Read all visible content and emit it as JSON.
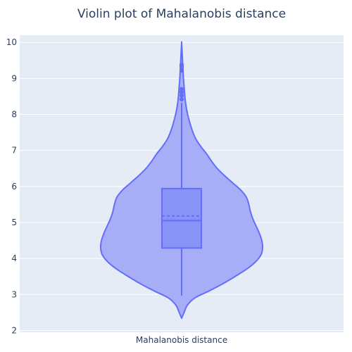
{
  "chart_data": {
    "type": "violin",
    "title": "Violin plot of Mahalanobis distance",
    "category": "Mahalanobis distance",
    "ylim": [
      1.95,
      10.2
    ],
    "yticks": [
      2,
      3,
      4,
      5,
      6,
      7,
      8,
      9,
      10
    ],
    "grid": true,
    "legend": "none",
    "colors": {
      "plot_bg": "#e5ecf6",
      "grid": "#ffffff",
      "violin_fill": "#a3aaf7",
      "violin_line": "#636efa",
      "box_fill": "#8a93f7",
      "text": "#2a3f5f"
    },
    "stats": {
      "min": 2.34,
      "lower_fence": 2.97,
      "q1": 4.29,
      "median": 5.05,
      "mean": 5.18,
      "q3": 5.94,
      "upper_fence": 8.32,
      "max": 9.98
    },
    "outliers": [
      8.42,
      8.53,
      8.62,
      8.7,
      9.22,
      9.33,
      9.38
    ],
    "density_profile": [
      {
        "y": 2.34,
        "w": 0.0
      },
      {
        "y": 2.5,
        "w": 0.03
      },
      {
        "y": 2.7,
        "w": 0.07
      },
      {
        "y": 2.9,
        "w": 0.16
      },
      {
        "y": 3.1,
        "w": 0.34
      },
      {
        "y": 3.3,
        "w": 0.51
      },
      {
        "y": 3.5,
        "w": 0.66
      },
      {
        "y": 3.7,
        "w": 0.8
      },
      {
        "y": 3.9,
        "w": 0.91
      },
      {
        "y": 4.1,
        "w": 0.98
      },
      {
        "y": 4.3,
        "w": 1.0
      },
      {
        "y": 4.5,
        "w": 0.99
      },
      {
        "y": 4.7,
        "w": 0.96
      },
      {
        "y": 4.9,
        "w": 0.92
      },
      {
        "y": 5.1,
        "w": 0.88
      },
      {
        "y": 5.3,
        "w": 0.85
      },
      {
        "y": 5.5,
        "w": 0.83
      },
      {
        "y": 5.7,
        "w": 0.8
      },
      {
        "y": 5.9,
        "w": 0.73
      },
      {
        "y": 6.1,
        "w": 0.63
      },
      {
        "y": 6.3,
        "w": 0.53
      },
      {
        "y": 6.5,
        "w": 0.44
      },
      {
        "y": 6.7,
        "w": 0.37
      },
      {
        "y": 6.9,
        "w": 0.31
      },
      {
        "y": 7.1,
        "w": 0.24
      },
      {
        "y": 7.3,
        "w": 0.18
      },
      {
        "y": 7.5,
        "w": 0.14
      },
      {
        "y": 7.7,
        "w": 0.11
      },
      {
        "y": 7.9,
        "w": 0.085
      },
      {
        "y": 8.1,
        "w": 0.065
      },
      {
        "y": 8.3,
        "w": 0.05
      },
      {
        "y": 8.5,
        "w": 0.04
      },
      {
        "y": 8.7,
        "w": 0.033
      },
      {
        "y": 8.9,
        "w": 0.026
      },
      {
        "y": 9.1,
        "w": 0.02
      },
      {
        "y": 9.3,
        "w": 0.016
      },
      {
        "y": 9.5,
        "w": 0.011
      },
      {
        "y": 9.7,
        "w": 0.007
      },
      {
        "y": 9.98,
        "w": 0.0
      }
    ]
  }
}
